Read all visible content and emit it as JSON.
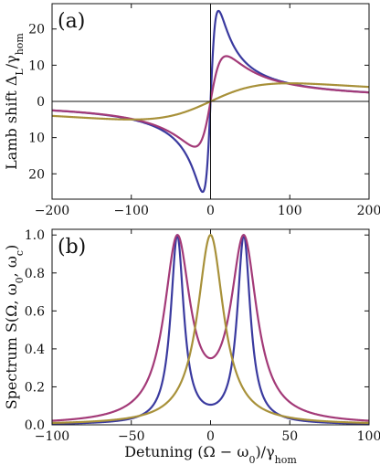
{
  "colors": {
    "blue": "#3a3a9f",
    "magenta": "#a33a78",
    "olive": "#a8913a"
  },
  "chart_data": [
    {
      "type": "line",
      "panel_label": "(a)",
      "title": "",
      "xlabel": "",
      "ylabel": "Lamb shift Δ_L/γ_hom",
      "ylabel_main": "Lamb shift Δ",
      "ylabel_sub": "L",
      "ylabel_rest": "/γ",
      "ylabel_sub2": "hom",
      "xlim": [
        -200,
        200
      ],
      "ylim": [
        -27,
        27
      ],
      "x_ticks": [
        -200,
        -100,
        0,
        100,
        200
      ],
      "x_tick_labels": [
        "−200",
        "−100",
        "0",
        "100",
        "200"
      ],
      "y_ticks": [
        20,
        10,
        0,
        -10,
        -20
      ],
      "y_tick_labels": [
        "20",
        "10",
        "0",
        "10",
        "20"
      ],
      "series": [
        {
          "color_key": "blue",
          "model": "disp",
          "gamma": 10,
          "peak": 25
        },
        {
          "color_key": "magenta",
          "model": "disp",
          "gamma": 20,
          "peak": 12.5
        },
        {
          "color_key": "olive",
          "model": "disp",
          "gamma": 100,
          "peak": 5
        }
      ]
    },
    {
      "type": "line",
      "panel_label": "(b)",
      "title": "",
      "xlabel": "Detuning (Ω − ω_0)/γ_hom",
      "xlabel_main": "Detuning (Ω − ω",
      "xlabel_sub": "0",
      "xlabel_rest": ")/γ",
      "xlabel_sub2": "hom",
      "ylabel": "Spectrum S(Ω, ω_0, ω_c)",
      "ylabel_main": "Spectrum S(Ω, ω",
      "ylabel_sub": "0",
      "ylabel_rest": ", ω",
      "ylabel_sub2": "c",
      "ylabel_end": ")",
      "xlim": [
        -100,
        100
      ],
      "ylim": [
        0,
        1.03
      ],
      "x_ticks": [
        -100,
        -50,
        0,
        50,
        100
      ],
      "x_tick_labels": [
        "−100",
        "−50",
        "0",
        "50",
        "100"
      ],
      "y_ticks": [
        0,
        0.2,
        0.4,
        0.6,
        0.8,
        1.0
      ],
      "y_tick_labels": [
        "0.0",
        "0.2",
        "0.4",
        "0.6",
        "0.8",
        "1.0"
      ],
      "series": [
        {
          "color_key": "blue",
          "model": "split",
          "center": 21,
          "gamma": 5
        },
        {
          "color_key": "magenta",
          "model": "split",
          "center": 21,
          "gamma": 10
        },
        {
          "color_key": "olive",
          "model": "lorentz",
          "center": 0,
          "gamma": 10
        }
      ]
    }
  ]
}
